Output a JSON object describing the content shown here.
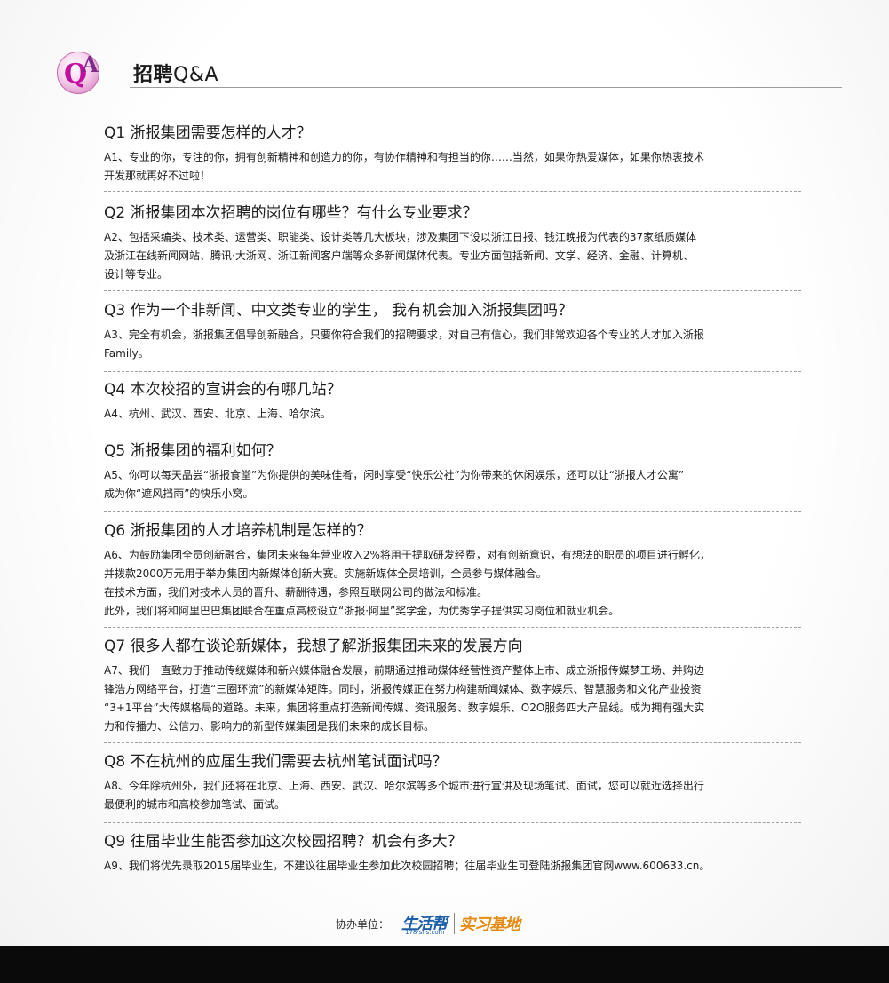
{
  "header": {
    "title_cn": "招聘",
    "title_en": "Q&A",
    "logo_q": "Q",
    "logo_a": "A"
  },
  "qa": [
    {
      "q": "Q1 浙报集团需要怎样的人才？",
      "a": [
        "A1、专业的你，专注的你，拥有创新精神和创造力的你，有协作精神和有担当的你……当然，如果你热爱媒体，如果你热衷技术",
        "开发那就再好不过啦！"
      ]
    },
    {
      "q": "Q2 浙报集团本次招聘的岗位有哪些？有什么专业要求？",
      "a": [
        "A2、包括采编类、技术类、运营类、职能类、设计类等几大板块，涉及集团下设以浙江日报、钱江晚报为代表的37家纸质媒体",
        "及浙江在线新闻网站、腾讯·大浙网、浙江新闻客户端等众多新闻媒体代表。专业方面包括新闻、文学、经济、金融、计算机、",
        "设计等专业。"
      ]
    },
    {
      "q": "Q3 作为一个非新闻、中文类专业的学生， 我有机会加入浙报集团吗？",
      "a": [
        "A3、完全有机会，浙报集团倡导创新融合，只要你符合我们的招聘要求，对自己有信心，我们非常欢迎各个专业的人才加入浙报",
        "Family。"
      ]
    },
    {
      "q": "Q4 本次校招的宣讲会的有哪几站？",
      "a": [
        "A4、杭州、武汉、西安、北京、上海、哈尔滨。"
      ]
    },
    {
      "q": "Q5 浙报集团的福利如何？",
      "a": [
        "A5、你可以每天品尝“浙报食堂”为你提供的美味佳肴，闲时享受“快乐公社”为你带来的休闲娱乐，还可以让“浙报人才公寓”",
        "成为你“遮风挡雨”的快乐小窝。"
      ]
    },
    {
      "q": "Q6 浙报集团的人才培养机制是怎样的？",
      "a": [
        "A6、为鼓励集团全员创新融合，集团未来每年营业收入2%将用于提取研发经费，对有创新意识，有想法的职员的项目进行孵化，",
        "并拨款2000万元用于举办集团内新媒体创新大赛。实施新媒体全员培训，全员参与媒体融合。",
        "在技术方面，我们对技术人员的晋升、薪酬待遇，参照互联网公司的做法和标准。",
        "此外，我们将和阿里巴巴集团联合在重点高校设立“浙报·阿里”奖学金，为优秀学子提供实习岗位和就业机会。"
      ]
    },
    {
      "q": "Q7 很多人都在谈论新媒体，我想了解浙报集团未来的发展方向",
      "a": [
        "A7、我们一直致力于推动传统媒体和新兴媒体融合发展，前期通过推动媒体经营性资产整体上市、成立浙报传媒梦工场、并购边",
        "锋浩方网络平台，打造“三圈环流”的新媒体矩阵。同时，浙报传媒正在努力构建新闻媒体、数字娱乐、智慧服务和文化产业投资",
        "“3+1平台”大传媒格局的道路。未来，集团将重点打造新闻传媒、资讯服务、数字娱乐、O2O服务四大产品线。成为拥有强大实",
        "力和传播力、公信力、影响力的新型传媒集团是我们未来的成长目标。"
      ]
    },
    {
      "q": "Q8 不在杭州的应届生我们需要去杭州笔试面试吗？",
      "a": [
        "A8、今年除杭州外，我们还将在北京、上海、西安、武汉、哈尔滨等多个城市进行宣讲及现场笔试、面试，您可以就近选择出行",
        "最便利的城市和高校参加笔试、面试。"
      ]
    },
    {
      "q": "Q9 往届毕业生能否参加这次校园招聘？机会有多大？",
      "a": [
        "A9、我们将优先录取2015届毕业生，不建议往届毕业生参加此次校园招聘；往届毕业生可登陆浙报集团官网www.600633.cn。"
      ]
    }
  ],
  "footer": {
    "label": "协办单位：",
    "brand1": "生活帮",
    "brand1_sub": "178·shs.com",
    "brand2": "实习基地"
  }
}
